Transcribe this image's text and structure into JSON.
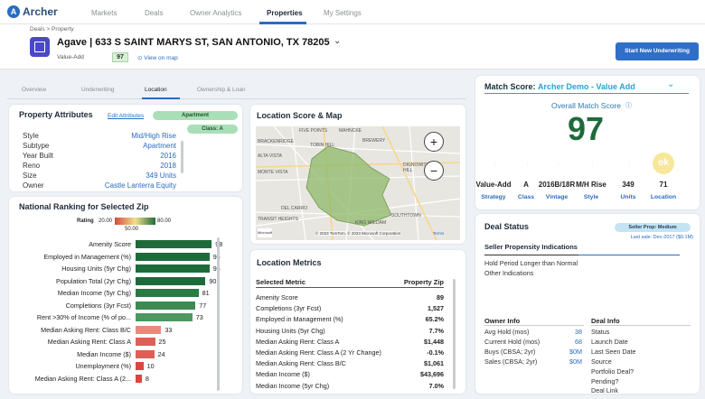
{
  "app": {
    "name": "Archer"
  },
  "nav": {
    "items": [
      "Markets",
      "Deals",
      "Owner Analytics",
      "Properties",
      "My Settings"
    ],
    "active": "Properties"
  },
  "header": {
    "breadcrumb": "Deals  >  Property",
    "title": "Agave | 633 S SAINT MARYS ST, SAN ANTONIO, TX 78205",
    "strategy_tag": "Value-Add",
    "score": "97",
    "view_map": "View on map",
    "start_button": "Start New Underwriting"
  },
  "tabs": [
    "Overview",
    "Underwriting",
    "Location",
    "Ownership & Loan"
  ],
  "property_attributes": {
    "title": "Property Attributes",
    "edit_link": "Edit Attributes",
    "pill_type": "Apartment",
    "pill_class": "Class: A",
    "rows": [
      {
        "key": "Style",
        "value": "Mid/High Rise"
      },
      {
        "key": "Subtype",
        "value": "Apartment"
      },
      {
        "key": "Year Built",
        "value": "2016"
      },
      {
        "key": "Reno",
        "value": "2018"
      },
      {
        "key": "Size",
        "value": "349 Units"
      },
      {
        "key": "Owner",
        "value": "Castle Lanterra Equity"
      }
    ]
  },
  "national_ranking": {
    "title": "National Ranking for Selected Zip",
    "legend_label": "Rating",
    "legend_min": "20.00",
    "legend_max": "80.00",
    "legend_mid": "50.00",
    "rows": [
      {
        "label": "Amenity Score",
        "value": 98,
        "color": "#1e6b3a"
      },
      {
        "label": "Employed in Management (%)",
        "value": 95,
        "color": "#1e6b3a"
      },
      {
        "label": "Housing Units (5yr Chg)",
        "value": 95,
        "color": "#1e6b3a"
      },
      {
        "label": "Population Total (2yr Chg)",
        "value": 90,
        "color": "#1e6b3a"
      },
      {
        "label": "Median Income (5yr Chg)",
        "value": 81,
        "color": "#2a7a45"
      },
      {
        "label": "Completions (3yr Fcst)",
        "value": 77,
        "color": "#3e8a52"
      },
      {
        "label": "Rent >30% of Income (% of po...",
        "value": 73,
        "color": "#4f9660"
      },
      {
        "label": "Median Asking Rent: Class B/C",
        "value": 33,
        "color": "#e88a7a"
      },
      {
        "label": "Median Asking Rent: Class A",
        "value": 25,
        "color": "#de5f55"
      },
      {
        "label": "Median Income ($)",
        "value": 24,
        "color": "#de5f55"
      },
      {
        "label": "Unemployment (%)",
        "value": 10,
        "color": "#d8473f"
      },
      {
        "label": "Median Asking Rent: Class A (2...",
        "value": 8,
        "color": "#d8473f"
      }
    ]
  },
  "location_map": {
    "title": "Location Score & Map",
    "streets": [
      "FIVE POINTS",
      "BRACKENRIDGE",
      "MAHNCKE",
      "ALTA VISTA",
      "TOBIN HILL",
      "MONTE VISTA",
      "BREWERY",
      "DIGNOWITY HILL",
      "SOUTHTOWN",
      "DEL CARRO",
      "KING WILLIAM",
      "TRANSIT HEIGHTS"
    ],
    "copyright": "© 2023 TomTom, © 2023 Microsoft Corporation",
    "terms": "Terms",
    "ms_logo": "Microsoft"
  },
  "location_metrics": {
    "title": "Location Metrics",
    "col_left": "Selected Metric",
    "col_right": "Property Zip",
    "rows": [
      {
        "key": "Amenity Score",
        "value": "89"
      },
      {
        "key": "Completions (3yr Fcst)",
        "value": "1,527"
      },
      {
        "key": "Employed in Management (%)",
        "value": "65.2%"
      },
      {
        "key": "Housing Units (5yr Chg)",
        "value": "7.7%"
      },
      {
        "key": "Median Asking Rent: Class A",
        "value": "$1,448"
      },
      {
        "key": "Median Asking Rent: Class A (2 Yr Change)",
        "value": "-0.1%"
      },
      {
        "key": "Median Asking Rent: Class B/C",
        "value": "$1,061"
      },
      {
        "key": "Median Income ($)",
        "value": "$43,696"
      },
      {
        "key": "Median Income (5yr Chg)",
        "value": "7.0%"
      }
    ]
  },
  "match_score": {
    "label": "Match Score:",
    "profile": "Archer Demo - Value Add",
    "overall_label": "Overall Match Score",
    "overall_value": "97",
    "items": [
      {
        "value": "Value-Add",
        "label": "Strategy",
        "icon": "thumbs-up-icon"
      },
      {
        "value": "A",
        "label": "Class",
        "icon": "thumbs-up-icon"
      },
      {
        "value": "2016B/18R",
        "label": "Vintage",
        "icon": "thumbs-up-icon"
      },
      {
        "value": "M/H Rise",
        "label": "Style",
        "icon": "thumbs-up-icon"
      },
      {
        "value": "349",
        "label": "Units",
        "icon": "thumbs-up-icon"
      },
      {
        "value": "71",
        "label": "Location",
        "icon": "ok-icon",
        "icon_text": "ok"
      }
    ]
  },
  "deal_status": {
    "title": "Deal Status",
    "badge": "Seller Prop: Medium",
    "last_sale": "Last sale: Dec-2017 ($0.1M)",
    "indications_title": "Seller Propensity Indications",
    "indications": [
      "Hold Period Longer than Normal",
      "Other Indications"
    ],
    "owner_info": {
      "title": "Owner Info",
      "rows": [
        {
          "key": "Avg Hold (mos)",
          "value": "38"
        },
        {
          "key": "Current Hold (mos)",
          "value": "68"
        },
        {
          "key": "Buys (CBSA; 2yr)",
          "value": "$0M"
        },
        {
          "key": "Sales (CBSA; 2yr)",
          "value": "$0M"
        }
      ]
    },
    "deal_info": {
      "title": "Deal Info",
      "rows": [
        "Status",
        "Launch Date",
        "Last Seen Date",
        "Source",
        "Portfolio Deal?",
        "Pending?",
        "Deal Link"
      ]
    }
  }
}
